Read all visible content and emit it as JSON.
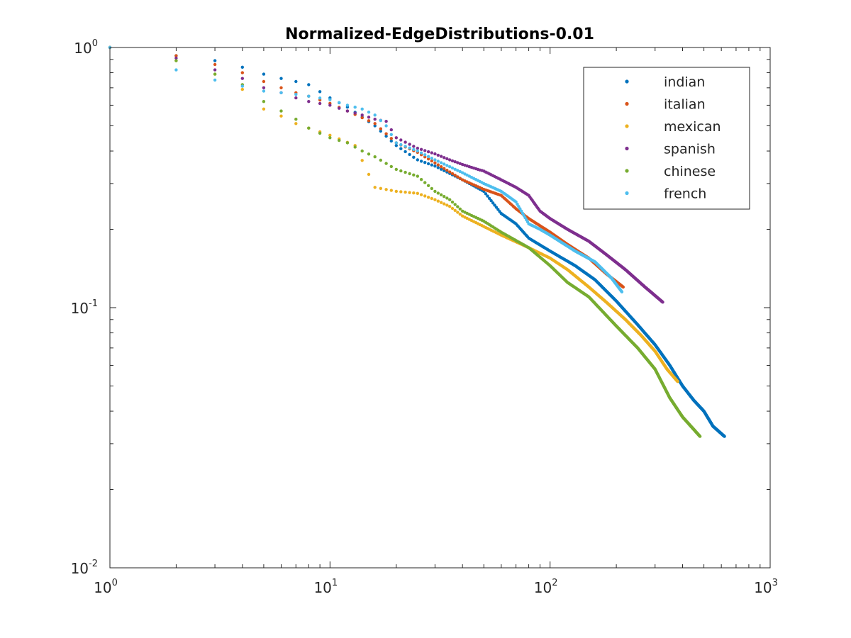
{
  "chart_data": {
    "type": "scatter",
    "title": "Normalized-EdgeDistributions-0.01",
    "xlabel": "",
    "ylabel": "",
    "xscale": "log",
    "yscale": "log",
    "xlim": [
      1,
      1000
    ],
    "ylim": [
      0.01,
      1
    ],
    "x_ticks": [
      {
        "base": "10",
        "exp": "0",
        "value": 1
      },
      {
        "base": "10",
        "exp": "1",
        "value": 10
      },
      {
        "base": "10",
        "exp": "2",
        "value": 100
      },
      {
        "base": "10",
        "exp": "3",
        "value": 1000
      }
    ],
    "y_ticks": [
      {
        "base": "10",
        "exp": "-2",
        "value": 0.01
      },
      {
        "base": "10",
        "exp": "-1",
        "value": 0.1
      },
      {
        "base": "10",
        "exp": "0",
        "value": 1
      }
    ],
    "grid": false,
    "legend_position": "top-right",
    "series": [
      {
        "name": "indian",
        "color": "#0072BD",
        "n": 620,
        "points": [
          [
            1,
            1.0
          ],
          [
            2,
            0.93
          ],
          [
            3,
            0.89
          ],
          [
            4,
            0.84
          ],
          [
            5,
            0.79
          ],
          [
            6,
            0.76
          ],
          [
            7,
            0.74
          ],
          [
            8,
            0.72
          ],
          [
            10,
            0.64
          ],
          [
            12,
            0.59
          ],
          [
            16,
            0.5
          ],
          [
            20,
            0.42
          ],
          [
            25,
            0.37
          ],
          [
            30,
            0.35
          ],
          [
            40,
            0.31
          ],
          [
            50,
            0.28
          ],
          [
            60,
            0.23
          ],
          [
            70,
            0.21
          ],
          [
            80,
            0.185
          ],
          [
            100,
            0.165
          ],
          [
            130,
            0.145
          ],
          [
            160,
            0.128
          ],
          [
            200,
            0.106
          ],
          [
            250,
            0.086
          ],
          [
            300,
            0.072
          ],
          [
            350,
            0.06
          ],
          [
            400,
            0.05
          ],
          [
            450,
            0.044
          ],
          [
            500,
            0.04
          ],
          [
            550,
            0.035
          ],
          [
            620,
            0.032
          ]
        ]
      },
      {
        "name": "italian",
        "color": "#D95319",
        "n": 215,
        "points": [
          [
            1,
            1.0
          ],
          [
            2,
            0.93
          ],
          [
            3,
            0.86
          ],
          [
            4,
            0.8
          ],
          [
            5,
            0.74
          ],
          [
            6,
            0.7
          ],
          [
            7,
            0.67
          ],
          [
            8,
            0.65
          ],
          [
            10,
            0.61
          ],
          [
            12,
            0.57
          ],
          [
            16,
            0.51
          ],
          [
            20,
            0.43
          ],
          [
            25,
            0.395
          ],
          [
            30,
            0.36
          ],
          [
            40,
            0.31
          ],
          [
            50,
            0.285
          ],
          [
            60,
            0.27
          ],
          [
            70,
            0.24
          ],
          [
            80,
            0.22
          ],
          [
            100,
            0.195
          ],
          [
            120,
            0.175
          ],
          [
            150,
            0.155
          ],
          [
            180,
            0.135
          ],
          [
            215,
            0.12
          ]
        ]
      },
      {
        "name": "mexican",
        "color": "#EDB120",
        "n": 380,
        "points": [
          [
            1,
            1.0
          ],
          [
            2,
            0.89
          ],
          [
            3,
            0.79
          ],
          [
            4,
            0.69
          ],
          [
            5,
            0.58
          ],
          [
            6,
            0.545
          ],
          [
            7,
            0.51
          ],
          [
            8,
            0.49
          ],
          [
            10,
            0.46
          ],
          [
            13,
            0.42
          ],
          [
            16,
            0.29
          ],
          [
            20,
            0.28
          ],
          [
            25,
            0.275
          ],
          [
            30,
            0.26
          ],
          [
            35,
            0.245
          ],
          [
            40,
            0.225
          ],
          [
            50,
            0.205
          ],
          [
            60,
            0.19
          ],
          [
            80,
            0.17
          ],
          [
            100,
            0.155
          ],
          [
            120,
            0.14
          ],
          [
            150,
            0.12
          ],
          [
            180,
            0.105
          ],
          [
            220,
            0.09
          ],
          [
            260,
            0.078
          ],
          [
            300,
            0.068
          ],
          [
            340,
            0.058
          ],
          [
            380,
            0.052
          ]
        ]
      },
      {
        "name": "spanish",
        "color": "#7E2F8E",
        "n": 325,
        "points": [
          [
            1,
            1.0
          ],
          [
            2,
            0.91
          ],
          [
            3,
            0.82
          ],
          [
            4,
            0.76
          ],
          [
            5,
            0.7
          ],
          [
            6,
            0.67
          ],
          [
            7,
            0.64
          ],
          [
            8,
            0.62
          ],
          [
            10,
            0.6
          ],
          [
            12,
            0.57
          ],
          [
            14,
            0.55
          ],
          [
            16,
            0.53
          ],
          [
            18,
            0.52
          ],
          [
            20,
            0.45
          ],
          [
            25,
            0.41
          ],
          [
            30,
            0.39
          ],
          [
            35,
            0.37
          ],
          [
            40,
            0.355
          ],
          [
            47,
            0.34
          ],
          [
            50,
            0.335
          ],
          [
            60,
            0.31
          ],
          [
            70,
            0.29
          ],
          [
            80,
            0.27
          ],
          [
            90,
            0.235
          ],
          [
            100,
            0.22
          ],
          [
            120,
            0.2
          ],
          [
            150,
            0.18
          ],
          [
            180,
            0.16
          ],
          [
            220,
            0.14
          ],
          [
            270,
            0.12
          ],
          [
            325,
            0.105
          ]
        ]
      },
      {
        "name": "chinese",
        "color": "#77AC30",
        "n": 480,
        "points": [
          [
            1,
            1.0
          ],
          [
            2,
            0.89
          ],
          [
            3,
            0.79
          ],
          [
            4,
            0.72
          ],
          [
            5,
            0.62
          ],
          [
            6,
            0.57
          ],
          [
            7,
            0.53
          ],
          [
            8,
            0.49
          ],
          [
            10,
            0.45
          ],
          [
            12,
            0.43
          ],
          [
            14,
            0.4
          ],
          [
            16,
            0.38
          ],
          [
            20,
            0.34
          ],
          [
            25,
            0.32
          ],
          [
            30,
            0.28
          ],
          [
            35,
            0.26
          ],
          [
            40,
            0.235
          ],
          [
            50,
            0.215
          ],
          [
            60,
            0.195
          ],
          [
            80,
            0.17
          ],
          [
            100,
            0.145
          ],
          [
            120,
            0.125
          ],
          [
            150,
            0.11
          ],
          [
            200,
            0.085
          ],
          [
            250,
            0.07
          ],
          [
            300,
            0.058
          ],
          [
            350,
            0.045
          ],
          [
            400,
            0.038
          ],
          [
            480,
            0.032
          ]
        ]
      },
      {
        "name": "french",
        "color": "#4DBEEE",
        "n": 212,
        "points": [
          [
            1,
            1.0
          ],
          [
            2,
            0.82
          ],
          [
            3,
            0.75
          ],
          [
            4,
            0.71
          ],
          [
            5,
            0.68
          ],
          [
            6,
            0.67
          ],
          [
            7,
            0.66
          ],
          [
            8,
            0.65
          ],
          [
            10,
            0.63
          ],
          [
            12,
            0.6
          ],
          [
            14,
            0.58
          ],
          [
            16,
            0.55
          ],
          [
            18,
            0.5
          ],
          [
            20,
            0.43
          ],
          [
            25,
            0.4
          ],
          [
            30,
            0.37
          ],
          [
            40,
            0.33
          ],
          [
            50,
            0.3
          ],
          [
            60,
            0.28
          ],
          [
            70,
            0.255
          ],
          [
            80,
            0.21
          ],
          [
            90,
            0.2
          ],
          [
            100,
            0.19
          ],
          [
            130,
            0.165
          ],
          [
            160,
            0.15
          ],
          [
            190,
            0.13
          ],
          [
            212,
            0.115
          ]
        ]
      }
    ]
  },
  "icons": {
    "legend_marker": "dot-marker"
  }
}
